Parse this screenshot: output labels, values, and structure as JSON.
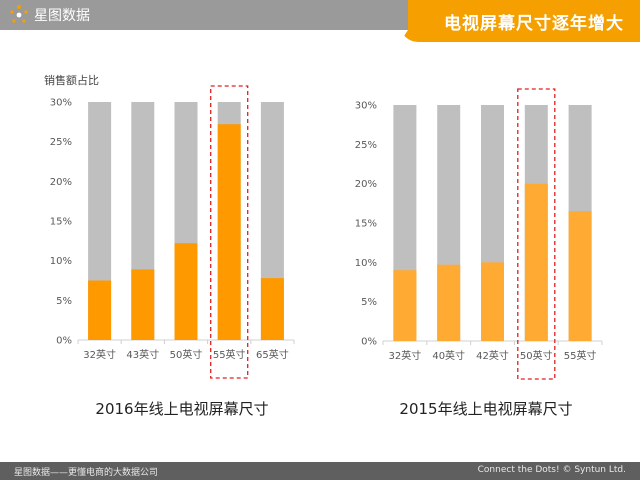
{
  "header": {
    "brand": "星图数据",
    "title": "电视屏幕尺寸逐年增大",
    "colors": {
      "bar": "#9a9a9a",
      "accent": "#f5a000"
    }
  },
  "footer": {
    "left": "星图数据——更懂电商的大数据公司",
    "right": "Connect the Dots! © Syntun Ltd."
  },
  "chart_data": [
    {
      "type": "bar",
      "title": "2016年线上电视屏幕尺寸",
      "ylabel": "销售额占比",
      "categories": [
        "32英寸",
        "43英寸",
        "50英寸",
        "55英寸",
        "65英寸"
      ],
      "values": [
        7.5,
        8.9,
        12.2,
        27.2,
        7.8
      ],
      "ylim": [
        0,
        30
      ],
      "yticks": [
        "0%",
        "5%",
        "10%",
        "15%",
        "20%",
        "25%",
        "30%"
      ],
      "highlight": "55英寸",
      "colors": {
        "background_bar": "#bfbfbf",
        "value_bar": "#ff9900"
      }
    },
    {
      "type": "bar",
      "title": "2015年线上电视屏幕尺寸",
      "ylabel": "",
      "categories": [
        "32英寸",
        "40英寸",
        "42英寸",
        "50英寸",
        "55英寸"
      ],
      "values": [
        9.0,
        9.7,
        10.0,
        20.0,
        16.5
      ],
      "ylim": [
        0,
        30
      ],
      "yticks": [
        "0%",
        "5%",
        "10%",
        "15%",
        "20%",
        "25%",
        "30%"
      ],
      "highlight": "50英寸",
      "colors": {
        "background_bar": "#bfbfbf",
        "value_bar": "#ffaa33"
      }
    }
  ]
}
